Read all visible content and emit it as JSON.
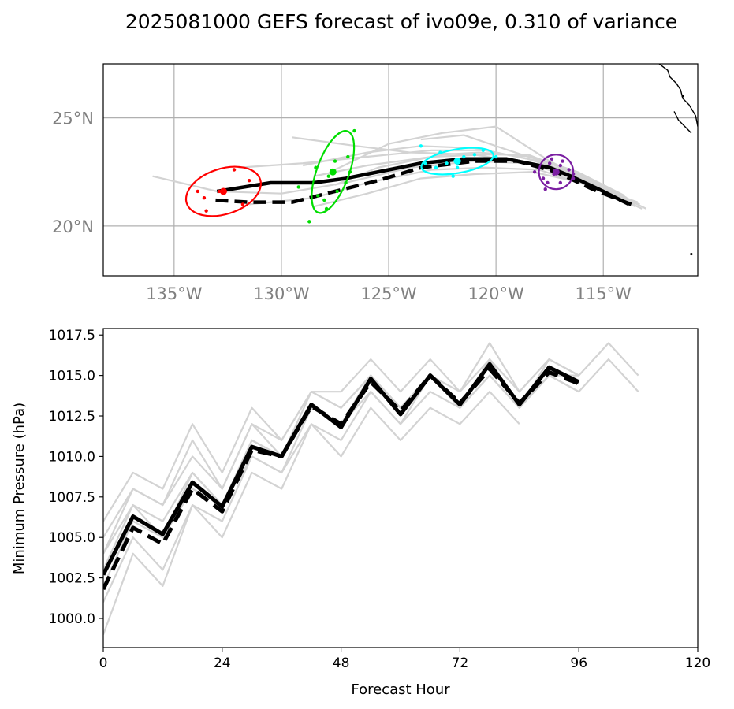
{
  "title": "2025081000 GEFS forecast of ivo09e, 0.310 of variance",
  "chart_data": [
    {
      "type": "map-track",
      "lon_range": [
        -138.3,
        -110.6
      ],
      "lat_range": [
        17.7,
        27.5
      ],
      "lon_ticks": [
        {
          "value": -135,
          "label": "135°W"
        },
        {
          "value": -130,
          "label": "130°W"
        },
        {
          "value": -125,
          "label": "125°W"
        },
        {
          "value": -120,
          "label": "120°W"
        },
        {
          "value": -115,
          "label": "115°W"
        }
      ],
      "lat_ticks": [
        {
          "value": 25,
          "label": "25°N"
        },
        {
          "value": 20,
          "label": "20°N"
        }
      ],
      "grid": true,
      "colors": {
        "track_main": "#000000",
        "ensemble": "#d3d3d3",
        "ellipses": [
          "#7b1fa2",
          "#00ffff",
          "#00dd00",
          "#ff0000"
        ],
        "coast": "#000000",
        "grid": "#b0b0b0"
      },
      "mean_track": [
        [
          -113.8,
          21.0
        ],
        [
          -115.0,
          21.6
        ],
        [
          -116.5,
          22.3
        ],
        [
          -117.5,
          22.7
        ],
        [
          -119.5,
          23.1
        ],
        [
          -121.5,
          23.1
        ],
        [
          -123.5,
          22.9
        ],
        [
          -125.0,
          22.6
        ],
        [
          -127.0,
          22.2
        ],
        [
          -128.5,
          22.0
        ],
        [
          -130.5,
          22.0
        ],
        [
          -133.0,
          21.6
        ]
      ],
      "control_track": [
        [
          -113.7,
          21.0
        ],
        [
          -115.5,
          21.7
        ],
        [
          -117.2,
          22.5
        ],
        [
          -119.0,
          23.0
        ],
        [
          -121.0,
          23.0
        ],
        [
          -123.5,
          22.7
        ],
        [
          -125.5,
          22.1
        ],
        [
          -127.5,
          21.6
        ],
        [
          -129.5,
          21.1
        ],
        [
          -131.5,
          21.1
        ],
        [
          -133.2,
          21.2
        ]
      ],
      "ensemble_tracks": [
        [
          [
            -113.5,
            20.9
          ],
          [
            -116,
            22.0
          ],
          [
            -118,
            22.8
          ],
          [
            -121,
            23.3
          ],
          [
            -124,
            23.4
          ],
          [
            -126.5,
            23.7
          ],
          [
            -129.5,
            24.1
          ]
        ],
        [
          [
            -113.2,
            20.8
          ],
          [
            -116,
            22.1
          ],
          [
            -118.5,
            22.9
          ],
          [
            -121,
            23.0
          ],
          [
            -124,
            22.7
          ],
          [
            -127,
            22.0
          ],
          [
            -130,
            21.5
          ],
          [
            -133,
            21.6
          ],
          [
            -136,
            22.3
          ]
        ],
        [
          [
            -113.6,
            21.1
          ],
          [
            -116,
            22.3
          ],
          [
            -118.5,
            23.3
          ],
          [
            -120.5,
            23.3
          ],
          [
            -123,
            23.2
          ],
          [
            -126,
            22.8
          ],
          [
            -128.5,
            22.3
          ]
        ],
        [
          [
            -113.3,
            21.0
          ],
          [
            -115.8,
            21.9
          ],
          [
            -118,
            22.6
          ],
          [
            -120.5,
            22.7
          ],
          [
            -123,
            22.6
          ],
          [
            -126,
            22.0
          ],
          [
            -128.5,
            21.3
          ],
          [
            -131.5,
            21.0
          ]
        ],
        [
          [
            -113.0,
            20.8
          ],
          [
            -115.5,
            22.0
          ],
          [
            -117.5,
            23.0
          ],
          [
            -120,
            24.6
          ],
          [
            -122.5,
            24.3
          ],
          [
            -125,
            23.8
          ],
          [
            -127.5,
            22.6
          ]
        ],
        [
          [
            -113.8,
            21.2
          ],
          [
            -116.3,
            22.4
          ],
          [
            -118.5,
            23.1
          ],
          [
            -121,
            23.6
          ],
          [
            -123.5,
            23.7
          ],
          [
            -126,
            23.4
          ],
          [
            -129,
            22.8
          ]
        ],
        [
          [
            -113.4,
            21.1
          ],
          [
            -116,
            22.0
          ],
          [
            -118.3,
            22.5
          ],
          [
            -121,
            22.4
          ],
          [
            -123.5,
            22.2
          ],
          [
            -126,
            21.5
          ],
          [
            -128.5,
            20.9
          ]
        ],
        [
          [
            -113.9,
            21.3
          ],
          [
            -116.5,
            22.6
          ],
          [
            -118.8,
            23.3
          ],
          [
            -121.5,
            24.2
          ],
          [
            -123.5,
            24.0
          ]
        ],
        [
          [
            -113.5,
            21.0
          ],
          [
            -116,
            22.2
          ],
          [
            -118,
            23.0
          ],
          [
            -120.5,
            23.5
          ],
          [
            -123,
            23.5
          ],
          [
            -126,
            23.2
          ],
          [
            -129,
            22.9
          ],
          [
            -132,
            22.7
          ]
        ],
        [
          [
            -114.0,
            21.4
          ],
          [
            -116.2,
            22.5
          ],
          [
            -118.3,
            23.2
          ],
          [
            -120.8,
            23.4
          ],
          [
            -122.5,
            23.3
          ],
          [
            -125.5,
            22.7
          ],
          [
            -127.5,
            21.9
          ]
        ]
      ],
      "ellipses": [
        {
          "lon": -117.2,
          "lat": 22.5,
          "rx_deg": 0.8,
          "ry_deg": 0.8,
          "angle": 0,
          "color": "#7b1fa2",
          "points": [
            [
              -117.8,
              22.2
            ],
            [
              -117.3,
              22.4
            ],
            [
              -117.0,
              22.8
            ],
            [
              -116.6,
              22.6
            ],
            [
              -116.4,
              22.2
            ],
            [
              -117.5,
              22.9
            ],
            [
              -117.6,
              22.0
            ],
            [
              -117.0,
              22.0
            ],
            [
              -118.2,
              22.5
            ],
            [
              -116.9,
              23.0
            ],
            [
              -117.4,
              23.1
            ],
            [
              -117.7,
              21.7
            ],
            [
              -116.4,
              22.4
            ]
          ]
        },
        {
          "lon": -121.8,
          "lat": 23.0,
          "rx_deg": 1.7,
          "ry_deg": 0.55,
          "angle": -10,
          "color": "#00ffff",
          "points": [
            [
              -122.3,
              22.9
            ],
            [
              -121.9,
              23.0
            ],
            [
              -121.0,
              23.3
            ],
            [
              -122.8,
              22.7
            ],
            [
              -120.6,
              23.5
            ],
            [
              -123.3,
              22.9
            ],
            [
              -122.0,
              22.3
            ],
            [
              -121.5,
              23.2
            ],
            [
              -123.5,
              23.7
            ],
            [
              -120.0,
              23.2
            ],
            [
              -122.6,
              23.4
            ],
            [
              -121.8,
              22.7
            ]
          ]
        },
        {
          "lon": -127.6,
          "lat": 22.5,
          "rx_deg": 0.75,
          "ry_deg": 2.0,
          "angle": 20,
          "color": "#00dd00",
          "points": [
            [
              -127.8,
              22.3
            ],
            [
              -128.3,
              21.4
            ],
            [
              -126.9,
              23.2
            ],
            [
              -127.4,
              21.6
            ],
            [
              -128.4,
              22.7
            ],
            [
              -126.6,
              24.4
            ],
            [
              -127.5,
              23.0
            ],
            [
              -128.7,
              20.2
            ],
            [
              -128.0,
              21.2
            ],
            [
              -127.0,
              22.0
            ],
            [
              -129.2,
              21.8
            ],
            [
              -127.9,
              20.8
            ],
            [
              -126.8,
              22.5
            ]
          ]
        },
        {
          "lon": -132.7,
          "lat": 21.6,
          "rx_deg": 1.8,
          "ry_deg": 1.05,
          "angle": -18,
          "color": "#ff0000",
          "points": [
            [
              -133.6,
              21.3
            ],
            [
              -132.9,
              21.6
            ],
            [
              -132.2,
              22.6
            ],
            [
              -131.5,
              22.1
            ],
            [
              -133.9,
              21.6
            ],
            [
              -133.5,
              20.7
            ],
            [
              -131.8,
              21.0
            ]
          ]
        }
      ]
    },
    {
      "type": "line",
      "xlabel": "Forecast Hour",
      "ylabel": "Minimum Pressure (hPa)",
      "xlim": [
        0,
        120
      ],
      "ylim": [
        998.2,
        1017.9
      ],
      "x_ticks": [
        0,
        24,
        48,
        72,
        96,
        120
      ],
      "y_ticks": [
        1000.0,
        1002.5,
        1005.0,
        1007.5,
        1010.0,
        1012.5,
        1015.0,
        1017.5
      ],
      "y_tick_labels": [
        "1000.0",
        "1002.5",
        "1005.0",
        "1007.5",
        "1010.0",
        "1012.5",
        "1015.0",
        "1017.5"
      ],
      "grid": false,
      "colors": {
        "main": "#000000",
        "ensemble": "#d3d3d3"
      },
      "mean_series": {
        "x": [
          0,
          6,
          12,
          18,
          24,
          30,
          36,
          42,
          48,
          54,
          60,
          66,
          72,
          78,
          84,
          90,
          96
        ],
        "values": [
          1002.7,
          1006.3,
          1005.2,
          1008.4,
          1006.9,
          1010.6,
          1010.0,
          1013.2,
          1011.8,
          1014.8,
          1012.6,
          1015.0,
          1013.2,
          1015.7,
          1013.2,
          1015.5,
          1014.6
        ]
      },
      "control_series": {
        "x": [
          0,
          6,
          12,
          18,
          24,
          30,
          36,
          42,
          48,
          54,
          60,
          66,
          72,
          78,
          84,
          90,
          96
        ],
        "values": [
          1001.8,
          1005.6,
          1004.6,
          1008.0,
          1006.6,
          1010.4,
          1010.0,
          1013.1,
          1012.0,
          1014.6,
          1012.8,
          1015.0,
          1013.3,
          1015.4,
          1013.3,
          1015.2,
          1014.5
        ]
      },
      "ensemble_series": [
        {
          "x": [
            0,
            6,
            12,
            18,
            24,
            30,
            36,
            42,
            48,
            54,
            60,
            66,
            72,
            78,
            84,
            90,
            96,
            102,
            108
          ],
          "values": [
            1006,
            1009,
            1008,
            1012,
            1009,
            1013,
            1011,
            1014,
            1014,
            1016,
            1014,
            1016,
            1014,
            1017,
            1014,
            1016,
            1015,
            1017,
            1015
          ]
        },
        {
          "x": [
            0,
            6,
            12,
            18,
            24,
            30,
            36,
            42,
            48,
            54,
            60,
            66,
            72,
            78,
            84,
            90,
            96,
            102,
            108
          ],
          "values": [
            1004,
            1008,
            1007,
            1011,
            1008,
            1012,
            1011,
            1014,
            1013,
            1015,
            1013,
            1015,
            1013,
            1016,
            1013,
            1015,
            1014,
            1016,
            1014
          ]
        },
        {
          "x": [
            0,
            6,
            12,
            18,
            24,
            30,
            36,
            42,
            48,
            54,
            60,
            66,
            72,
            78,
            84
          ],
          "values": [
            999,
            1004,
            1002,
            1007,
            1005,
            1009,
            1008,
            1012,
            1010,
            1013,
            1011,
            1013,
            1012,
            1014,
            1012
          ]
        },
        {
          "x": [
            0,
            6,
            12,
            18,
            24,
            30,
            36,
            42,
            48,
            54,
            60,
            66,
            72,
            78,
            84,
            90,
            96
          ],
          "values": [
            1001,
            1005,
            1003,
            1007,
            1006,
            1010,
            1009,
            1012,
            1011,
            1014,
            1012,
            1014,
            1013,
            1015,
            1013,
            1015,
            1014
          ]
        },
        {
          "x": [
            0,
            6,
            12,
            18,
            24,
            30,
            36,
            42,
            48,
            54,
            60,
            66,
            72,
            78,
            84,
            90,
            96
          ],
          "values": [
            1003,
            1007,
            1006,
            1009,
            1007,
            1011,
            1010,
            1013,
            1012,
            1015,
            1013,
            1015,
            1013,
            1016,
            1013,
            1016,
            1015
          ]
        },
        {
          "x": [
            0,
            6,
            12,
            18,
            24,
            30,
            36,
            42,
            48,
            54,
            60,
            66,
            72,
            78,
            84,
            90,
            96
          ],
          "values": [
            1005,
            1008,
            1007,
            1010,
            1008,
            1012,
            1010,
            1014,
            1013,
            1015,
            1013,
            1015,
            1014,
            1016,
            1014,
            1016,
            1015
          ]
        },
        {
          "x": [
            0,
            6,
            12,
            18,
            24,
            30,
            36,
            42,
            48,
            54,
            60,
            66,
            72,
            78,
            84,
            90,
            96
          ],
          "values": [
            1002,
            1006,
            1005,
            1008,
            1007,
            1010,
            1009,
            1013,
            1012,
            1014,
            1012,
            1015,
            1013,
            1015,
            1013,
            1015,
            1014
          ]
        },
        {
          "x": [
            0,
            6,
            12,
            18,
            24,
            30,
            36,
            42,
            48,
            54,
            60,
            66,
            72,
            78,
            84,
            90,
            96
          ],
          "values": [
            1004,
            1007,
            1005,
            1009,
            1007,
            1011,
            1010,
            1013,
            1012,
            1015,
            1013,
            1015,
            1013,
            1016,
            1013,
            1015,
            1015
          ]
        }
      ]
    }
  ]
}
